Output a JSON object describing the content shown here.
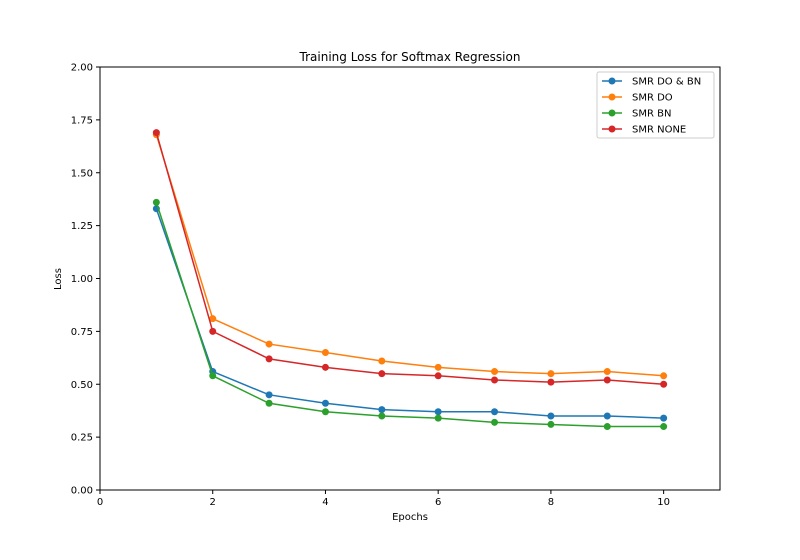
{
  "chart_data": {
    "type": "line",
    "title": "Training Loss for Softmax Regression",
    "xlabel": "Epochs",
    "ylabel": "Loss",
    "xlim": [
      0,
      11
    ],
    "ylim": [
      0,
      2.0
    ],
    "xticks": [
      "0",
      "2",
      "4",
      "6",
      "8",
      "10"
    ],
    "yticks": [
      "0.00",
      "0.25",
      "0.50",
      "0.75",
      "1.00",
      "1.25",
      "1.50",
      "1.75",
      "2.00"
    ],
    "grid": false,
    "legend_position": "top-right",
    "x": [
      1,
      2,
      3,
      4,
      5,
      6,
      7,
      8,
      9,
      10
    ],
    "series": [
      {
        "name": "SMR DO & BN",
        "color": "#1f77b4",
        "values": [
          1.33,
          0.56,
          0.45,
          0.41,
          0.38,
          0.37,
          0.37,
          0.35,
          0.35,
          0.34
        ]
      },
      {
        "name": "SMR DO",
        "color": "#ff7f0e",
        "values": [
          1.68,
          0.81,
          0.69,
          0.65,
          0.61,
          0.58,
          0.56,
          0.55,
          0.56,
          0.54
        ]
      },
      {
        "name": "SMR BN",
        "color": "#2ca02c",
        "values": [
          1.36,
          0.54,
          0.41,
          0.37,
          0.35,
          0.34,
          0.32,
          0.31,
          0.3,
          0.3
        ]
      },
      {
        "name": "SMR NONE",
        "color": "#d62728",
        "values": [
          1.69,
          0.75,
          0.62,
          0.58,
          0.55,
          0.54,
          0.52,
          0.51,
          0.52,
          0.5
        ]
      }
    ]
  }
}
